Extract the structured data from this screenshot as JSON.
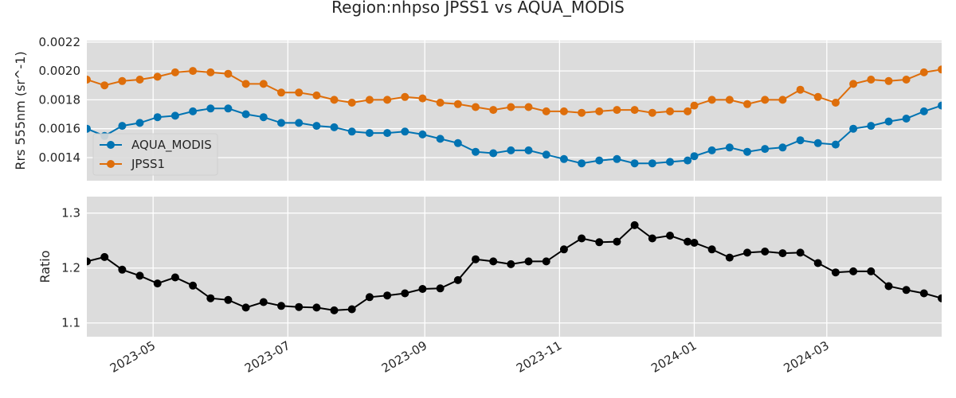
{
  "chart_data": {
    "type": "line",
    "title": "Region:nhpso JPSS1 vs AQUA_MODIS",
    "x_dates": [
      "2023-04-01",
      "2023-04-09",
      "2023-04-17",
      "2023-04-25",
      "2023-05-03",
      "2023-05-11",
      "2023-05-19",
      "2023-05-27",
      "2023-06-04",
      "2023-06-12",
      "2023-06-20",
      "2023-06-28",
      "2023-07-06",
      "2023-07-14",
      "2023-07-22",
      "2023-07-30",
      "2023-08-07",
      "2023-08-15",
      "2023-08-23",
      "2023-08-31",
      "2023-09-08",
      "2023-09-16",
      "2023-09-24",
      "2023-10-02",
      "2023-10-10",
      "2023-10-18",
      "2023-10-26",
      "2023-11-03",
      "2023-11-11",
      "2023-11-19",
      "2023-11-27",
      "2023-12-05",
      "2023-12-13",
      "2023-12-21",
      "2023-12-29",
      "2024-01-01",
      "2024-01-09",
      "2024-01-17",
      "2024-01-25",
      "2024-02-02",
      "2024-02-10",
      "2024-02-18",
      "2024-02-26",
      "2024-03-05",
      "2024-03-13",
      "2024-03-21",
      "2024-03-29",
      "2024-04-06",
      "2024-04-14",
      "2024-04-22"
    ],
    "x_range": [
      "2023-04-01",
      "2024-04-22"
    ],
    "x_ticks": [
      "2023-05",
      "2023-07",
      "2023-09",
      "2023-11",
      "2024-01",
      "2024-03"
    ],
    "panels": [
      {
        "ylabel": "Rrs 555nm (sr^-1)",
        "ylim": [
          0.00124,
          0.00221
        ],
        "yticks": [
          "0.0014",
          "0.0016",
          "0.0018",
          "0.0020",
          "0.0022"
        ],
        "legend_position": "lower-left",
        "series": [
          {
            "name": "AQUA_MODIS",
            "color": "#0173b2",
            "values": [
              0.0016,
              0.00155,
              0.00162,
              0.00164,
              0.00168,
              0.00169,
              0.00172,
              0.00174,
              0.00174,
              0.0017,
              0.00168,
              0.00164,
              0.00164,
              0.00162,
              0.00161,
              0.00158,
              0.00157,
              0.00157,
              0.00158,
              0.00156,
              0.00153,
              0.0015,
              0.00144,
              0.00143,
              0.00145,
              0.00145,
              0.00142,
              0.00139,
              0.00136,
              0.00138,
              0.00139,
              0.00136,
              0.00136,
              0.00137,
              0.00138,
              0.00141,
              0.00145,
              0.00147,
              0.00144,
              0.00146,
              0.00147,
              0.00152,
              0.0015,
              0.00149,
              0.0016,
              0.00162,
              0.00165,
              0.00167,
              0.00172,
              0.00176
            ]
          },
          {
            "name": "JPSS1",
            "color": "#de6e0b",
            "values": [
              0.00194,
              0.0019,
              0.00193,
              0.00194,
              0.00196,
              0.00199,
              0.002,
              0.00199,
              0.00198,
              0.00191,
              0.00191,
              0.00185,
              0.00185,
              0.00183,
              0.0018,
              0.00178,
              0.0018,
              0.0018,
              0.00182,
              0.00181,
              0.00178,
              0.00177,
              0.00175,
              0.00173,
              0.00175,
              0.00175,
              0.00172,
              0.00172,
              0.00171,
              0.00172,
              0.00173,
              0.00173,
              0.00171,
              0.00172,
              0.00172,
              0.00176,
              0.0018,
              0.0018,
              0.00177,
              0.0018,
              0.0018,
              0.00187,
              0.00182,
              0.00178,
              0.00191,
              0.00194,
              0.00193,
              0.00194,
              0.00199,
              0.00201
            ]
          }
        ]
      },
      {
        "ylabel": "Ratio",
        "ylim": [
          1.075,
          1.33
        ],
        "yticks": [
          "1.1",
          "1.2",
          "1.3"
        ],
        "series": [
          {
            "name": "",
            "color": "#000000",
            "values": [
              1.212,
              1.22,
              1.197,
              1.186,
              1.172,
              1.183,
              1.168,
              1.145,
              1.142,
              1.128,
              1.138,
              1.131,
              1.129,
              1.128,
              1.123,
              1.125,
              1.147,
              1.15,
              1.154,
              1.162,
              1.163,
              1.178,
              1.216,
              1.212,
              1.207,
              1.212,
              1.212,
              1.234,
              1.254,
              1.247,
              1.248,
              1.278,
              1.254,
              1.259,
              1.248,
              1.246,
              1.234,
              1.219,
              1.228,
              1.23,
              1.227,
              1.228,
              1.209,
              1.192,
              1.194,
              1.194,
              1.167,
              1.16,
              1.154,
              1.145
            ]
          }
        ]
      }
    ]
  }
}
